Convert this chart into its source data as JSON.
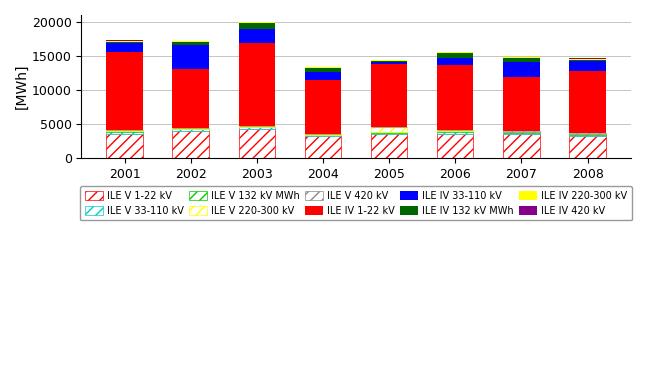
{
  "years": [
    "2001",
    "2002",
    "2003",
    "2004",
    "2005",
    "2006",
    "2007",
    "2008"
  ],
  "series_order": [
    "ILE V 1-22 kV",
    "ILE V 33-110 kV",
    "ILE V 132 kV MWh",
    "ILE V 220-300 kV",
    "ILE V 420 kV",
    "ILE IV 1-22 kV",
    "ILE IV 33-110 kV",
    "ILE IV 132 kV MWh",
    "ILE IV 220-300 kV",
    "ILE IV 420 kV"
  ],
  "series": {
    "ILE V 1-22 kV": [
      3600,
      4000,
      4300,
      3200,
      3500,
      3600,
      3500,
      3200
    ],
    "ILE V 33-110 kV": [
      200,
      200,
      200,
      150,
      200,
      200,
      200,
      200
    ],
    "ILE V 132 kV MWh": [
      150,
      100,
      100,
      100,
      150,
      150,
      100,
      100
    ],
    "ILE V 220-300 kV": [
      100,
      100,
      100,
      80,
      700,
      150,
      80,
      80
    ],
    "ILE V 420 kV": [
      50,
      50,
      50,
      50,
      50,
      50,
      50,
      50
    ],
    "ILE IV 1-22 kV": [
      11500,
      8600,
      12200,
      7900,
      9200,
      9500,
      8000,
      9200
    ],
    "ILE IV 33-110 kV": [
      1300,
      3500,
      2000,
      1100,
      300,
      1100,
      2100,
      1400
    ],
    "ILE IV 132 kV MWh": [
      200,
      500,
      900,
      650,
      200,
      700,
      700,
      100
    ],
    "ILE IV 220-300 kV": [
      150,
      100,
      100,
      150,
      100,
      100,
      100,
      150
    ],
    "ILE IV 420 kV": [
      50,
      50,
      50,
      50,
      50,
      50,
      50,
      280
    ]
  },
  "colors": {
    "ILE V 1-22 kV": "#ff0000",
    "ILE V 33-110 kV": "#00cccc",
    "ILE V 132 kV MWh": "#00cc00",
    "ILE V 220-300 kV": "#ffff00",
    "ILE V 420 kV": "#888888",
    "ILE IV 1-22 kV": "#ff0000",
    "ILE IV 33-110 kV": "#0000ff",
    "ILE IV 132 kV MWh": "#006600",
    "ILE IV 220-300 kV": "#ffff00",
    "ILE IV 420 kV": "#880088"
  },
  "hatches": {
    "ILE V 1-22 kV": "///",
    "ILE V 33-110 kV": "///",
    "ILE V 132 kV MWh": "///",
    "ILE V 220-300 kV": "///",
    "ILE V 420 kV": "///",
    "ILE IV 1-22 kV": "",
    "ILE IV 33-110 kV": "",
    "ILE IV 132 kV MWh": "",
    "ILE IV 220-300 kV": "",
    "ILE IV 420 kV": ""
  },
  "hatch_bg": {
    "ILE V 1-22 kV": "#ffffff",
    "ILE V 33-110 kV": "#ffffff",
    "ILE V 132 kV MWh": "#ffffff",
    "ILE V 220-300 kV": "#ffffff",
    "ILE V 420 kV": "#ffffff"
  },
  "ylabel": "[MWh]",
  "ylim": [
    0,
    21000
  ],
  "yticks": [
    0,
    5000,
    10000,
    15000,
    20000
  ],
  "legend_labels_row1": [
    "ILE V 1-22 kV",
    "ILE V 33-110 kV",
    "ILE V 132 kV MWh",
    "ILE V 220-300 kV",
    "ILE V 420 kV"
  ],
  "legend_labels_row2": [
    "ILE IV 1-22 kV",
    "ILE IV 33-110 kV",
    "ILE IV 132 kV MWh",
    "ILE IV 220-300 kV",
    "ILE IV 420 kV"
  ]
}
